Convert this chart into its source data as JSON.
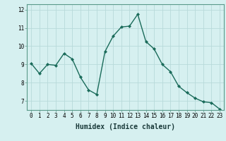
{
  "x": [
    0,
    1,
    2,
    3,
    4,
    5,
    6,
    7,
    8,
    9,
    10,
    11,
    12,
    13,
    14,
    15,
    16,
    17,
    18,
    19,
    20,
    21,
    22,
    23
  ],
  "y": [
    9.05,
    8.5,
    9.0,
    8.95,
    9.6,
    9.3,
    8.3,
    7.6,
    7.35,
    9.7,
    10.55,
    11.05,
    11.1,
    11.75,
    10.25,
    9.85,
    9.0,
    8.6,
    7.8,
    7.45,
    7.15,
    6.95,
    6.9,
    6.55
  ],
  "line_color": "#1a6b5a",
  "marker": "D",
  "marker_size": 2.0,
  "bg_color": "#d6f0f0",
  "grid_color": "#b8dada",
  "xlabel": "Humidex (Indice chaleur)",
  "ylim": [
    6.5,
    12.3
  ],
  "xlim": [
    -0.5,
    23.5
  ],
  "yticks": [
    7,
    8,
    9,
    10,
    11,
    12
  ],
  "xticks": [
    0,
    1,
    2,
    3,
    4,
    5,
    6,
    7,
    8,
    9,
    10,
    11,
    12,
    13,
    14,
    15,
    16,
    17,
    18,
    19,
    20,
    21,
    22,
    23
  ],
  "tick_fontsize": 5.5,
  "xlabel_fontsize": 7.0,
  "linewidth": 1.0
}
